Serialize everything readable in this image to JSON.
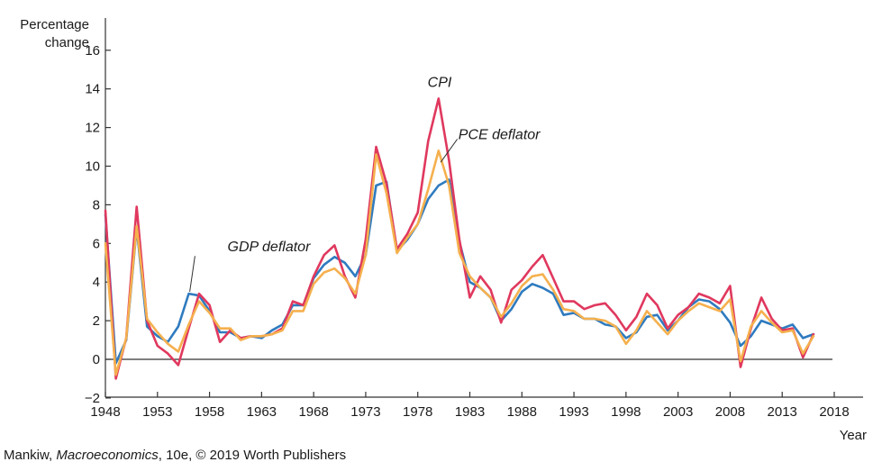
{
  "chart_data": {
    "type": "line",
    "title": "",
    "ylabel_line1": "Percentage",
    "ylabel_line2": "change",
    "xlabel": "Year",
    "xlim": [
      1948,
      2019
    ],
    "ylim": [
      -2,
      17
    ],
    "xticks": [
      1948,
      1953,
      1958,
      1963,
      1968,
      1973,
      1978,
      1983,
      1988,
      1993,
      1998,
      2003,
      2008,
      2013,
      2018
    ],
    "yticks": [
      -2,
      0,
      2,
      4,
      6,
      8,
      10,
      12,
      14,
      16
    ],
    "grid": false,
    "legend": "inline-labels",
    "series": [
      {
        "name": "GDP deflator",
        "color": "#2f7bbf",
        "label_year": 1963.7,
        "label_value": 5.6,
        "pointer_from": [
          1956.6,
          5.35
        ],
        "pointer_to": [
          1956.1,
          3.5
        ],
        "x": [
          1948,
          1949,
          1950,
          1951,
          1952,
          1953,
          1954,
          1955,
          1956,
          1957,
          1958,
          1959,
          1960,
          1961,
          1962,
          1963,
          1964,
          1965,
          1966,
          1967,
          1968,
          1969,
          1970,
          1971,
          1972,
          1973,
          1974,
          1975,
          1976,
          1977,
          1978,
          1979,
          1980,
          1981,
          1982,
          1983,
          1984,
          1985,
          1986,
          1987,
          1988,
          1989,
          1990,
          1991,
          1992,
          1993,
          1994,
          1995,
          1996,
          1997,
          1998,
          1999,
          2000,
          2001,
          2002,
          2003,
          2004,
          2005,
          2006,
          2007,
          2008,
          2009,
          2010,
          2011,
          2012,
          2013,
          2014,
          2015,
          2016
        ],
        "values": [
          7.5,
          -0.2,
          1.0,
          6.8,
          1.7,
          1.2,
          0.9,
          1.7,
          3.4,
          3.3,
          2.5,
          1.4,
          1.4,
          1.1,
          1.2,
          1.1,
          1.5,
          1.8,
          2.8,
          2.8,
          4.2,
          4.9,
          5.3,
          5.0,
          4.3,
          5.4,
          9.0,
          9.2,
          5.6,
          6.2,
          7.0,
          8.3,
          9.0,
          9.3,
          6.1,
          4.0,
          3.7,
          3.2,
          2.0,
          2.6,
          3.5,
          3.9,
          3.7,
          3.4,
          2.3,
          2.4,
          2.1,
          2.1,
          1.8,
          1.7,
          1.1,
          1.4,
          2.2,
          2.3,
          1.5,
          2.0,
          2.7,
          3.1,
          3.0,
          2.6,
          1.9,
          0.7,
          1.2,
          2.0,
          1.8,
          1.6,
          1.8,
          1.1,
          1.3
        ]
      },
      {
        "name": "CPI",
        "color": "#e0385e",
        "label_year": 1980.1,
        "label_value": 14.1,
        "x": [
          1948,
          1949,
          1950,
          1951,
          1952,
          1953,
          1954,
          1955,
          1956,
          1957,
          1958,
          1959,
          1960,
          1961,
          1962,
          1963,
          1964,
          1965,
          1966,
          1967,
          1968,
          1969,
          1970,
          1971,
          1972,
          1973,
          1974,
          1975,
          1976,
          1977,
          1978,
          1979,
          1980,
          1981,
          1982,
          1983,
          1984,
          1985,
          1986,
          1987,
          1988,
          1989,
          1990,
          1991,
          1992,
          1993,
          1994,
          1995,
          1996,
          1997,
          1998,
          1999,
          2000,
          2001,
          2002,
          2003,
          2004,
          2005,
          2006,
          2007,
          2008,
          2009,
          2010,
          2011,
          2012,
          2013,
          2014,
          2015,
          2016
        ],
        "values": [
          7.7,
          -1.0,
          1.1,
          7.9,
          2.0,
          0.7,
          0.3,
          -0.3,
          1.6,
          3.4,
          2.8,
          0.9,
          1.5,
          1.1,
          1.2,
          1.2,
          1.3,
          1.6,
          3.0,
          2.8,
          4.3,
          5.4,
          5.9,
          4.3,
          3.2,
          6.2,
          11.0,
          9.1,
          5.7,
          6.5,
          7.6,
          11.3,
          13.5,
          10.3,
          6.2,
          3.2,
          4.3,
          3.6,
          1.9,
          3.6,
          4.1,
          4.8,
          5.4,
          4.2,
          3.0,
          3.0,
          2.6,
          2.8,
          2.9,
          2.3,
          1.5,
          2.2,
          3.4,
          2.8,
          1.6,
          2.3,
          2.7,
          3.4,
          3.2,
          2.9,
          3.8,
          -0.4,
          1.6,
          3.2,
          2.1,
          1.5,
          1.6,
          0.1,
          1.3
        ]
      },
      {
        "name": "PCE deflator",
        "color": "#f5b04e",
        "label_year": 1976.0,
        "label_value": 11.4,
        "pointer_from": [
          1981.8,
          11.4
        ],
        "pointer_to": [
          1980.2,
          10.2
        ],
        "x": [
          1948,
          1949,
          1950,
          1951,
          1952,
          1953,
          1954,
          1955,
          1956,
          1957,
          1958,
          1959,
          1960,
          1961,
          1962,
          1963,
          1964,
          1965,
          1966,
          1967,
          1968,
          1969,
          1970,
          1971,
          1972,
          1973,
          1974,
          1975,
          1976,
          1977,
          1978,
          1979,
          1980,
          1981,
          1982,
          1983,
          1984,
          1985,
          1986,
          1987,
          1988,
          1989,
          1990,
          1991,
          1992,
          1993,
          1994,
          1995,
          1996,
          1997,
          1998,
          1999,
          2000,
          2001,
          2002,
          2003,
          2004,
          2005,
          2006,
          2007,
          2008,
          2009,
          2010,
          2011,
          2012,
          2013,
          2014,
          2015,
          2016
        ],
        "values": [
          6.0,
          -0.8,
          1.1,
          6.9,
          2.1,
          1.4,
          0.8,
          0.4,
          1.8,
          3.0,
          2.4,
          1.6,
          1.6,
          1.0,
          1.2,
          1.2,
          1.3,
          1.5,
          2.5,
          2.5,
          3.9,
          4.5,
          4.7,
          4.2,
          3.4,
          5.4,
          10.6,
          8.6,
          5.5,
          6.3,
          7.0,
          8.8,
          10.8,
          9.0,
          5.5,
          4.3,
          3.7,
          3.2,
          2.2,
          2.9,
          3.8,
          4.3,
          4.4,
          3.6,
          2.6,
          2.5,
          2.1,
          2.1,
          2.0,
          1.7,
          0.8,
          1.5,
          2.5,
          1.9,
          1.3,
          2.0,
          2.5,
          2.9,
          2.7,
          2.5,
          3.1,
          -0.1,
          1.7,
          2.5,
          1.9,
          1.4,
          1.5,
          0.3,
          1.2
        ]
      }
    ]
  },
  "credit": {
    "author": "Mankiw, ",
    "book": "Macroeconomics",
    "rest": ", 10e, © 2019 Worth Publishers"
  }
}
